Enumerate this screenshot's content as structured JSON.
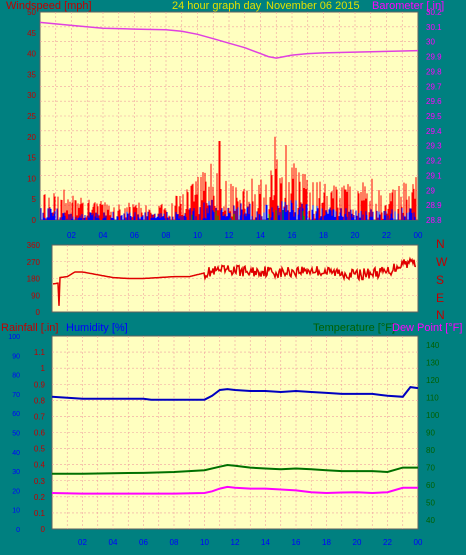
{
  "header": {
    "windspeed_label": "Windspeed [mph]",
    "title": "24 hour graph day",
    "date": "November 06 2015",
    "barometer_label": "Barometer [.in]"
  },
  "panel3_labels": {
    "rainfall": "Rainfall [.in]",
    "humidity": "Humidity [%]",
    "temperature": "Temperature [°F]",
    "dewpoint": "Dew Point [°F]"
  },
  "colors": {
    "background": "#008080",
    "plot_bg": "#ffffc0",
    "grid": "#f0a0a0",
    "wind_speed": "#ff0000",
    "wind_gust": "#0000ff",
    "wind_green": "#00a000",
    "barometer": "#e040e0",
    "direction": "#e00000",
    "humidity": "#0000c0",
    "temperature": "#007000",
    "dewpoint": "#ff00ff",
    "label_blue": "#0000ff",
    "label_pink": "#ff00ff",
    "label_green": "#006000",
    "label_red": "#c00000",
    "axis_yellow": "#e0e000"
  },
  "chart_data": [
    {
      "type": "line",
      "name": "wind_barometer",
      "x_tick_labels": [
        "02",
        "04",
        "06",
        "08",
        "10",
        "12",
        "14",
        "16",
        "18",
        "20",
        "22",
        "00"
      ],
      "left_ticks": [
        "50",
        "45",
        "40",
        "35",
        "30",
        "25",
        "20",
        "15",
        "10",
        "5",
        "0"
      ],
      "right_ticks": [
        "30.2",
        "30.1",
        "30",
        "29.9",
        "29.8",
        "29.7",
        "29.6",
        "29.5",
        "29.4",
        "29.3",
        "29.2",
        "29.1",
        "29",
        "28.9",
        "28.8"
      ],
      "left_ylim": [
        0,
        50
      ],
      "right_ylim": [
        28.8,
        30.2
      ],
      "xlim": [
        0,
        24
      ],
      "barometer": {
        "x": [
          0,
          2,
          4,
          6,
          8,
          9,
          10,
          11,
          12,
          13,
          14,
          14.5,
          15,
          15.5,
          16,
          17,
          18,
          20,
          22,
          24
        ],
        "y": [
          30.13,
          30.11,
          30.09,
          30.085,
          30.08,
          30.07,
          30.05,
          30.02,
          29.99,
          29.96,
          29.92,
          29.9,
          29.89,
          29.9,
          29.91,
          29.92,
          29.925,
          29.93,
          29.935,
          29.94
        ]
      },
      "wind_profile": {
        "x": [
          0,
          1,
          2,
          4,
          6,
          8,
          9,
          10,
          11,
          12,
          13,
          14,
          15,
          16,
          17,
          18,
          19,
          20,
          21,
          22,
          23,
          24
        ],
        "speed_max": [
          7,
          9,
          6,
          5,
          4,
          6,
          6,
          11,
          15,
          12,
          10,
          10,
          15,
          14,
          11,
          10,
          9,
          9,
          10,
          9,
          10,
          11
        ],
        "gust_max": [
          3,
          3,
          2,
          2,
          2,
          2,
          2,
          4,
          5,
          5,
          4,
          4,
          5,
          5,
          4,
          3,
          3,
          3,
          3,
          3,
          3,
          3
        ]
      },
      "wind_peaks": [
        {
          "x": 11.4,
          "y": 19
        },
        {
          "x": 14.9,
          "y": 20
        },
        {
          "x": 15.6,
          "y": 18
        }
      ]
    },
    {
      "type": "line",
      "name": "wind_direction",
      "y_ticks": [
        "360",
        "270",
        "180",
        "90",
        "0"
      ],
      "right_labels": [
        "N",
        "W",
        "S",
        "E",
        "N"
      ],
      "ylim": [
        0,
        360
      ],
      "xlim": [
        0,
        24
      ],
      "direction": {
        "x": [
          0,
          0.4,
          0.45,
          0.5,
          1,
          1.5,
          2,
          3,
          4,
          5,
          6,
          7,
          8,
          9,
          10,
          11,
          12,
          13,
          14,
          15,
          16,
          17,
          18,
          19,
          20,
          21,
          22,
          23,
          24
        ],
        "y": [
          150,
          155,
          0,
          185,
          190,
          215,
          215,
          200,
          185,
          180,
          180,
          185,
          190,
          190,
          210,
          220,
          225,
          215,
          220,
          210,
          220,
          225,
          215,
          210,
          200,
          210,
          215,
          265,
          270
        ]
      },
      "noise_start": 10,
      "noise_amp": 30
    },
    {
      "type": "line",
      "name": "rain_humidity_temperature",
      "x_tick_labels": [
        "02",
        "04",
        "06",
        "08",
        "10",
        "12",
        "14",
        "16",
        "18",
        "20",
        "22",
        "00"
      ],
      "rain_ticks": [
        "1.1",
        "1",
        "0.9",
        "0.8",
        "0.7",
        "0.6",
        "0.5",
        "0.4",
        "0.3",
        "0.2",
        "0.1",
        "0"
      ],
      "humidity_ticks": [
        "100",
        "90",
        "80",
        "70",
        "60",
        "50",
        "40",
        "30",
        "20",
        "10",
        "0"
      ],
      "temperature_ticks": [
        "140",
        "130",
        "120",
        "110",
        "100",
        "90",
        "80",
        "70",
        "60",
        "50",
        "40"
      ],
      "rain_ylim": [
        0,
        1.2
      ],
      "humidity_ylim": [
        0,
        100
      ],
      "temperature_ylim": [
        35,
        145
      ],
      "xlim": [
        0,
        24
      ],
      "humidity": {
        "x": [
          0,
          1,
          2,
          4,
          6,
          6.5,
          8,
          10,
          10.5,
          11,
          11.5,
          12,
          13,
          14,
          15,
          16,
          17,
          18,
          19,
          20,
          21,
          22,
          23,
          23.5,
          24
        ],
        "y": [
          68.5,
          68,
          67.5,
          67.5,
          67.5,
          67,
          67,
          67,
          69,
          72,
          72.5,
          72,
          71.5,
          71.5,
          71,
          71.5,
          71,
          70.5,
          70,
          70,
          70,
          69,
          68.5,
          73.5,
          73
        ]
      },
      "temperature": {
        "x": [
          0,
          2,
          4,
          6,
          8,
          10,
          11,
          11.5,
          12,
          13,
          14,
          15,
          16,
          17,
          18,
          19,
          20,
          21,
          22,
          23,
          24
        ],
        "y": [
          66.5,
          66.5,
          66.8,
          67,
          67.5,
          68.5,
          70.5,
          71.5,
          71,
          70,
          69.5,
          69,
          69.5,
          69,
          68.5,
          68,
          68,
          68,
          67.5,
          70,
          70
        ]
      },
      "dewpoint": {
        "x": [
          0,
          2,
          4,
          6,
          8,
          10,
          10.5,
          11,
          11.5,
          12,
          13,
          14,
          15,
          16,
          17,
          18,
          19,
          20,
          21,
          22,
          23,
          24
        ],
        "y": [
          55.5,
          55.2,
          55.2,
          55.2,
          55.2,
          55.5,
          56.5,
          58,
          59,
          58.5,
          58,
          58,
          57.5,
          57,
          56,
          55.5,
          55.8,
          56,
          55.5,
          56,
          58.5,
          58.5
        ]
      }
    }
  ]
}
